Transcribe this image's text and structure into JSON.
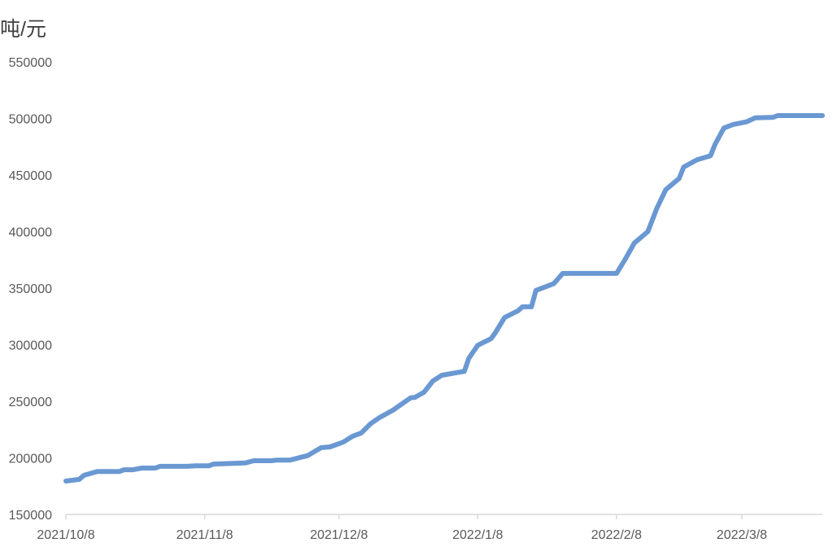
{
  "chart_data": {
    "type": "line",
    "title": "",
    "ylabel": "吨/元",
    "xlabel": "",
    "ylim": [
      150000,
      550000
    ],
    "ytick_step": 50000,
    "y_ticks": [
      "150000",
      "200000",
      "250000",
      "300000",
      "350000",
      "400000",
      "450000",
      "500000",
      "550000"
    ],
    "x_ticks": [
      "2021/10/8",
      "2021/11/8",
      "2021/12/8",
      "2022/1/8",
      "2022/2/8",
      "2022/3/8"
    ],
    "xlim": [
      "2021/10/8",
      "2022/3/26"
    ],
    "grid": false,
    "line_color": "#6a98d2",
    "series": [
      {
        "x": [
          "2021/10/8",
          "2021/10/11",
          "2021/10/12",
          "2021/10/15",
          "2021/10/20",
          "2021/10/21",
          "2021/10/23",
          "2021/10/25",
          "2021/10/28",
          "2021/10/29",
          "2021/11/4",
          "2021/11/6",
          "2021/11/9",
          "2021/11/10",
          "2021/11/17",
          "2021/11/19",
          "2021/11/23",
          "2021/11/24",
          "2021/11/27",
          "2021/12/1",
          "2021/12/4",
          "2021/12/6",
          "2021/12/8",
          "2021/12/9",
          "2021/12/11",
          "2021/12/13",
          "2021/12/15",
          "2021/12/17",
          "2021/12/20",
          "2021/12/24",
          "2021/12/25",
          "2021/12/27",
          "2021/12/29",
          "2021/12/31",
          "2022/1/5",
          "2022/1/6",
          "2022/1/8",
          "2022/1/11",
          "2022/1/12",
          "2022/1/14",
          "2022/1/17",
          "2022/1/18",
          "2022/1/20",
          "2022/1/21",
          "2022/1/25",
          "2022/1/27",
          "2022/2/8",
          "2022/2/10",
          "2022/2/12",
          "2022/2/15",
          "2022/2/17",
          "2022/2/19",
          "2022/2/22",
          "2022/2/23",
          "2022/2/26",
          "2022/3/1",
          "2022/3/2",
          "2022/3/4",
          "2022/3/6",
          "2022/3/9",
          "2022/3/11",
          "2022/3/15",
          "2022/3/16",
          "2022/3/26"
        ],
        "y": [
          179500,
          181000,
          184500,
          188000,
          188000,
          189500,
          189500,
          191000,
          191000,
          192500,
          192500,
          193000,
          193000,
          194500,
          195500,
          197500,
          197500,
          198000,
          198000,
          202000,
          209000,
          209700,
          212500,
          214000,
          219000,
          222000,
          230000,
          235500,
          242000,
          253000,
          253500,
          258000,
          268000,
          273000,
          276500,
          288000,
          299500,
          305500,
          311000,
          324000,
          330000,
          333500,
          333500,
          348000,
          354000,
          363000,
          363000,
          376000,
          390000,
          400000,
          420500,
          437000,
          447000,
          457000,
          463500,
          467000,
          477000,
          491500,
          494500,
          497000,
          500500,
          501000,
          502500,
          502500
        ]
      }
    ]
  }
}
